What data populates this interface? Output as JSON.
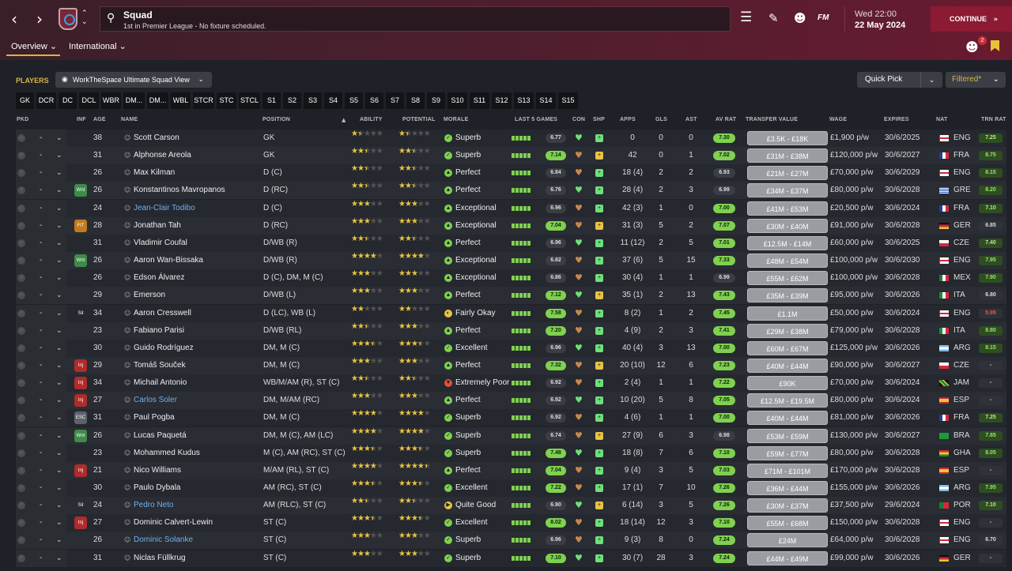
{
  "header": {
    "screen_title": "Squad",
    "screen_subtitle": "1st in Premier League - No fixture scheduled.",
    "fm_label": "FM",
    "date_line1": "Wed 22:00",
    "date_line2": "22 May 2024",
    "continue_label": "CONTINUE",
    "notification_count": "2"
  },
  "tabs": [
    {
      "label": "Overview"
    },
    {
      "label": "International"
    }
  ],
  "players_label": "PLAYERS",
  "view_name": "WorkTheSpace Ultimate Squad View",
  "quick_pick_label": "Quick Pick",
  "filter_label": "Filtered*",
  "positions": [
    "GK",
    "DCR",
    "DC",
    "DCL",
    "WBR",
    "DM...",
    "DM...",
    "WBL",
    "STCR",
    "STC",
    "STCL",
    "S1",
    "S2",
    "S3",
    "S4",
    "S5",
    "S6",
    "S7",
    "S8",
    "S9",
    "S10",
    "S11",
    "S12",
    "S13",
    "S14",
    "S15"
  ],
  "columns": {
    "pkd": "PKD",
    "inf": "INF",
    "age": "AGE",
    "name": "NAME",
    "position": "POSITION",
    "ability": "ABILITY",
    "potential": "POTENTIAL",
    "morale": "MORALE",
    "last5": "LAST 5 GAMES",
    "con": "CON",
    "shp": "SHP",
    "apps": "APPS",
    "gls": "GLS",
    "ast": "AST",
    "avrat": "AV RAT",
    "value": "TRANSFER VALUE",
    "wage": "WAGE",
    "expires": "EXPIRES",
    "nat": "NAT",
    "trn": "TRN RAT"
  },
  "players": [
    {
      "age": "38",
      "name": "Scott Carson",
      "position": "GK",
      "ability": 1.5,
      "potential": 1.5,
      "morale": "Superb",
      "last5": "6.77",
      "apps": "0",
      "gls": "0",
      "ast": "0",
      "avrat": "7.30",
      "value": "£3.5K - £18K",
      "wage": "£1,900 p/w",
      "expires": "30/6/2025",
      "nat": "ENG",
      "trn": "7.25",
      "inf": "",
      "hl": false
    },
    {
      "age": "31",
      "name": "Alphonse Areola",
      "position": "GK",
      "ability": 2.5,
      "potential": 2.5,
      "morale": "Superb",
      "last5": "7.14",
      "apps": "42",
      "gls": "0",
      "ast": "1",
      "avrat": "7.02",
      "value": "£31M - £38M",
      "wage": "£120,000 p/w",
      "expires": "30/6/2027",
      "nat": "FRA",
      "trn": "8.75",
      "inf": "",
      "hl": false
    },
    {
      "age": "26",
      "name": "Max Kilman",
      "position": "D (C)",
      "ability": 2.5,
      "potential": 2.5,
      "morale": "Perfect",
      "last5": "6.84",
      "apps": "18 (4)",
      "gls": "2",
      "ast": "2",
      "avrat": "6.93",
      "value": "£21M - £27M",
      "wage": "£70,000 p/w",
      "expires": "30/6/2029",
      "nat": "ENG",
      "trn": "8.15",
      "inf": "",
      "hl": false
    },
    {
      "age": "26",
      "name": "Konstantinos Mavropanos",
      "position": "D (RC)",
      "ability": 2.5,
      "potential": 2.5,
      "morale": "Perfect",
      "last5": "6.76",
      "apps": "28 (4)",
      "gls": "2",
      "ast": "3",
      "avrat": "6.99",
      "value": "£34M - £37M",
      "wage": "£80,000 p/w",
      "expires": "30/6/2028",
      "nat": "GRE",
      "trn": "8.20",
      "inf": "Wnt",
      "hl": false
    },
    {
      "age": "24",
      "name": "Jean-Clair Todibo",
      "position": "D (C)",
      "ability": 3,
      "potential": 3,
      "morale": "Exceptional",
      "last5": "6.96",
      "apps": "42 (3)",
      "gls": "1",
      "ast": "0",
      "avrat": "7.00",
      "value": "£41M - £53M",
      "wage": "£20,500 p/w",
      "expires": "30/6/2024",
      "nat": "FRA",
      "trn": "7.10",
      "inf": "",
      "hl": true
    },
    {
      "age": "28",
      "name": "Jonathan Tah",
      "position": "D (RC)",
      "ability": 3,
      "potential": 3,
      "morale": "Exceptional",
      "last5": "7.04",
      "apps": "31 (3)",
      "gls": "5",
      "ast": "2",
      "avrat": "7.07",
      "value": "£30M - £40M",
      "wage": "£91,000 p/w",
      "expires": "30/6/2028",
      "nat": "GER",
      "trn": "6.85",
      "inf": "FIT",
      "hl": false
    },
    {
      "age": "31",
      "name": "Vladimir Coufal",
      "position": "D/WB (R)",
      "ability": 2.5,
      "potential": 2.5,
      "morale": "Perfect",
      "last5": "6.96",
      "apps": "11 (12)",
      "gls": "2",
      "ast": "5",
      "avrat": "7.01",
      "value": "£12.5M - £14M",
      "wage": "£60,000 p/w",
      "expires": "30/6/2025",
      "nat": "CZE",
      "trn": "7.40",
      "inf": "",
      "hl": false
    },
    {
      "age": "26",
      "name": "Aaron Wan-Bissaka",
      "position": "D/WB (R)",
      "ability": 4,
      "potential": 4,
      "morale": "Exceptional",
      "last5": "6.82",
      "apps": "37 (6)",
      "gls": "5",
      "ast": "15",
      "avrat": "7.33",
      "value": "£48M - £54M",
      "wage": "£100,000 p/w",
      "expires": "30/6/2030",
      "nat": "ENG",
      "trn": "7.95",
      "inf": "Wnt",
      "hl": false
    },
    {
      "age": "26",
      "name": "Edson Álvarez",
      "position": "D (C), DM, M (C)",
      "ability": 3,
      "potential": 3,
      "morale": "Exceptional",
      "last5": "6.86",
      "apps": "30 (4)",
      "gls": "1",
      "ast": "1",
      "avrat": "6.99",
      "value": "£55M - £62M",
      "wage": "£100,000 p/w",
      "expires": "30/6/2028",
      "nat": "MEX",
      "trn": "7.90",
      "inf": "",
      "hl": false
    },
    {
      "age": "29",
      "name": "Emerson",
      "position": "D/WB (L)",
      "ability": 3,
      "potential": 3,
      "morale": "Perfect",
      "last5": "7.12",
      "apps": "35 (1)",
      "gls": "2",
      "ast": "13",
      "avrat": "7.43",
      "value": "£35M - £39M",
      "wage": "£95,000 p/w",
      "expires": "30/6/2026",
      "nat": "ITA",
      "trn": "6.80",
      "inf": "",
      "hl": false
    },
    {
      "age": "34",
      "name": "Aaron Cresswell",
      "position": "D (LC), WB (L)",
      "ability": 2,
      "potential": 2,
      "morale": "Fairly Okay",
      "last5": "7.58",
      "apps": "8 (2)",
      "gls": "1",
      "ast": "2",
      "avrat": "7.45",
      "value": "£1.1M",
      "wage": "£50,000 p/w",
      "expires": "30/6/2024",
      "nat": "ENG",
      "trn": "5.95",
      "inf": "Sit",
      "hl": false
    },
    {
      "age": "23",
      "name": "Fabiano Parisi",
      "position": "D/WB (RL)",
      "ability": 2.5,
      "potential": 3,
      "morale": "Perfect",
      "last5": "7.20",
      "apps": "4 (9)",
      "gls": "2",
      "ast": "3",
      "avrat": "7.41",
      "value": "£29M - £38M",
      "wage": "£79,000 p/w",
      "expires": "30/6/2028",
      "nat": "ITA",
      "trn": "8.80",
      "inf": "",
      "hl": false
    },
    {
      "age": "30",
      "name": "Guido Rodríguez",
      "position": "DM, M (C)",
      "ability": 3.5,
      "potential": 3.5,
      "morale": "Excellent",
      "last5": "6.96",
      "apps": "40 (4)",
      "gls": "3",
      "ast": "13",
      "avrat": "7.00",
      "value": "£60M - £67M",
      "wage": "£125,000 p/w",
      "expires": "30/6/2026",
      "nat": "ARG",
      "trn": "8.15",
      "inf": "",
      "hl": false
    },
    {
      "age": "29",
      "name": "Tomáš Souček",
      "position": "DM, M (C)",
      "ability": 3,
      "potential": 3,
      "morale": "Perfect",
      "last5": "7.32",
      "apps": "20 (10)",
      "gls": "12",
      "ast": "6",
      "avrat": "7.23",
      "value": "£40M - £44M",
      "wage": "£90,000 p/w",
      "expires": "30/6/2027",
      "nat": "CZE",
      "trn": "-",
      "inf": "Inj",
      "hl": false
    },
    {
      "age": "34",
      "name": "Michail Antonio",
      "position": "WB/M/AM (R), ST (C)",
      "ability": 2.5,
      "potential": 2.5,
      "morale": "Extremely Poor",
      "last5": "6.92",
      "apps": "2 (4)",
      "gls": "1",
      "ast": "1",
      "avrat": "7.22",
      "value": "£90K",
      "wage": "£70,000 p/w",
      "expires": "30/6/2024",
      "nat": "JAM",
      "trn": "-",
      "inf": "Inj",
      "hl": false
    },
    {
      "age": "27",
      "name": "Carlos Soler",
      "position": "DM, M/AM (RC)",
      "ability": 3,
      "potential": 3,
      "morale": "Perfect",
      "last5": "6.92",
      "apps": "10 (20)",
      "gls": "5",
      "ast": "8",
      "avrat": "7.05",
      "value": "£12.5M - £19.5M",
      "wage": "£80,000 p/w",
      "expires": "30/6/2024",
      "nat": "ESP",
      "trn": "-",
      "inf": "Inj",
      "hl": true
    },
    {
      "age": "31",
      "name": "Paul Pogba",
      "position": "DM, M (C)",
      "ability": 4,
      "potential": 4,
      "morale": "Superb",
      "last5": "6.92",
      "apps": "4 (6)",
      "gls": "1",
      "ast": "1",
      "avrat": "7.00",
      "value": "£40M - £44M",
      "wage": "£81,000 p/w",
      "expires": "30/6/2026",
      "nat": "FRA",
      "trn": "7.25",
      "inf": "ESC",
      "hl": false
    },
    {
      "age": "26",
      "name": "Lucas Paquetá",
      "position": "DM, M (C), AM (LC)",
      "ability": 4,
      "potential": 4,
      "morale": "Superb",
      "last5": "6.74",
      "apps": "27 (9)",
      "gls": "6",
      "ast": "3",
      "avrat": "6.98",
      "value": "£53M - £59M",
      "wage": "£130,000 p/w",
      "expires": "30/6/2027",
      "nat": "BRA",
      "trn": "7.85",
      "inf": "Wnt",
      "hl": false
    },
    {
      "age": "23",
      "name": "Mohammed Kudus",
      "position": "M (C), AM (RC), ST (C)",
      "ability": 3.5,
      "potential": 3.5,
      "morale": "Superb",
      "last5": "7.48",
      "apps": "18 (8)",
      "gls": "7",
      "ast": "6",
      "avrat": "7.10",
      "value": "£59M - £77M",
      "wage": "£80,000 p/w",
      "expires": "30/6/2028",
      "nat": "GHA",
      "trn": "8.05",
      "inf": "",
      "hl": false
    },
    {
      "age": "21",
      "name": "Nico Williams",
      "position": "M/AM (RL), ST (C)",
      "ability": 4,
      "potential": 4.5,
      "morale": "Perfect",
      "last5": "7.04",
      "apps": "9 (4)",
      "gls": "3",
      "ast": "5",
      "avrat": "7.03",
      "value": "£71M - £101M",
      "wage": "£170,000 p/w",
      "expires": "30/6/2028",
      "nat": "ESP",
      "trn": "-",
      "inf": "Inj",
      "hl": false
    },
    {
      "age": "30",
      "name": "Paulo Dybala",
      "position": "AM (RC), ST (C)",
      "ability": 3.5,
      "potential": 3.5,
      "morale": "Excellent",
      "last5": "7.22",
      "apps": "17 (1)",
      "gls": "7",
      "ast": "10",
      "avrat": "7.26",
      "value": "£36M - £44M",
      "wage": "£155,000 p/w",
      "expires": "30/6/2026",
      "nat": "ARG",
      "trn": "7.95",
      "inf": "",
      "hl": false
    },
    {
      "age": "24",
      "name": "Pedro Neto",
      "position": "AM (RLC), ST (C)",
      "ability": 2.5,
      "potential": 2.5,
      "morale": "Quite Good",
      "last5": "6.90",
      "apps": "6 (14)",
      "gls": "3",
      "ast": "5",
      "avrat": "7.26",
      "value": "£30M - £37M",
      "wage": "£37,500 p/w",
      "expires": "29/6/2024",
      "nat": "POR",
      "trn": "7.10",
      "inf": "Sit",
      "hl": true
    },
    {
      "age": "27",
      "name": "Dominic Calvert-Lewin",
      "position": "ST (C)",
      "ability": 3.5,
      "potential": 3.5,
      "morale": "Excellent",
      "last5": "8.02",
      "apps": "18 (14)",
      "gls": "12",
      "ast": "3",
      "avrat": "7.10",
      "value": "£55M - £68M",
      "wage": "£150,000 p/w",
      "expires": "30/6/2028",
      "nat": "ENG",
      "trn": "-",
      "inf": "Inj",
      "hl": false
    },
    {
      "age": "26",
      "name": "Dominic Solanke",
      "position": "ST (C)",
      "ability": 3,
      "potential": 3,
      "morale": "Superb",
      "last5": "6.96",
      "apps": "9 (3)",
      "gls": "8",
      "ast": "0",
      "avrat": "7.24",
      "value": "£24M",
      "wage": "£64,000 p/w",
      "expires": "30/6/2028",
      "nat": "ENG",
      "trn": "6.70",
      "inf": "",
      "hl": true
    },
    {
      "age": "31",
      "name": "Niclas Füllkrug",
      "position": "ST (C)",
      "ability": 3,
      "potential": 3,
      "morale": "Superb",
      "last5": "7.10",
      "apps": "30 (7)",
      "gls": "28",
      "ast": "3",
      "avrat": "7.24",
      "value": "£44M - £49M",
      "wage": "£99,000 p/w",
      "expires": "30/6/2026",
      "nat": "GER",
      "trn": "-",
      "inf": "",
      "hl": false
    }
  ]
}
